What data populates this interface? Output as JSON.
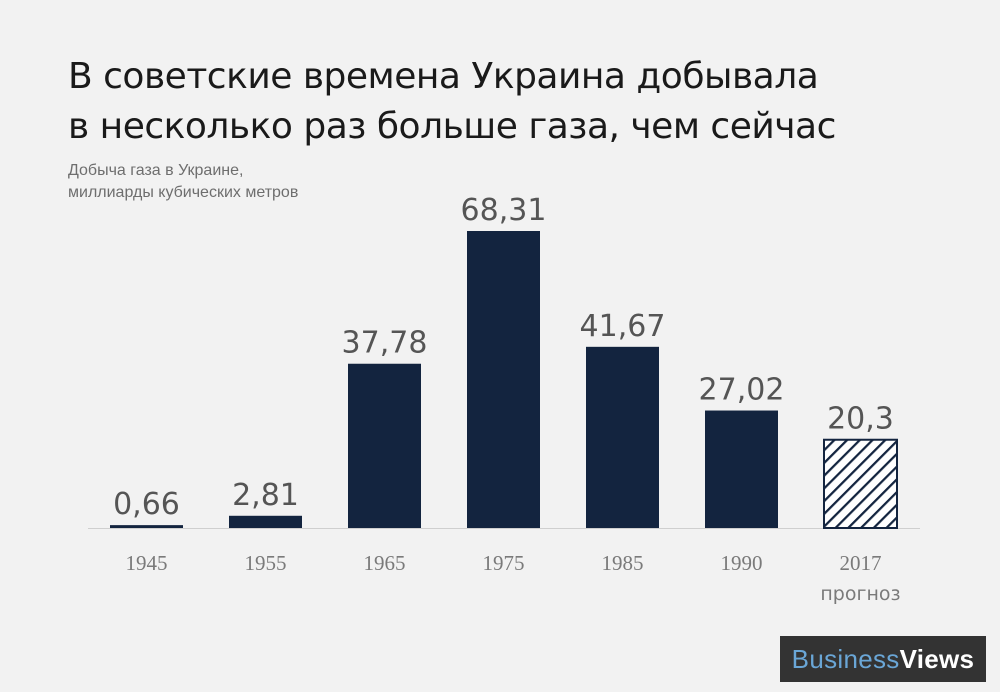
{
  "title_lines": [
    "В советские времена Украина добывала",
    "в несколько раз больше газа, чем сейчас"
  ],
  "subtitle_lines": [
    "Добыча газа в Украине,",
    "миллиарды кубических метров"
  ],
  "chart_data": {
    "type": "bar",
    "categories": [
      "1945",
      "1955",
      "1965",
      "1975",
      "1985",
      "1990",
      "2017"
    ],
    "category_notes": [
      "",
      "",
      "",
      "",
      "",
      "",
      "прогноз"
    ],
    "values": [
      0.66,
      2.81,
      37.78,
      68.31,
      41.67,
      27.02,
      20.3
    ],
    "value_labels": [
      "0,66",
      "2,81",
      "37,78",
      "68,31",
      "41,67",
      "27,02",
      "20,3"
    ],
    "forecast": [
      false,
      false,
      false,
      false,
      false,
      false,
      true
    ],
    "ylim": [
      0,
      68.31
    ],
    "grid": false,
    "bar_color": "#13243f",
    "forecast_style": "diagonal-hatch"
  },
  "logo": {
    "part1": "Business",
    "part2": "Views"
  },
  "colors": {
    "background": "#f2f2f2",
    "bar": "#13243f",
    "label": "#555555",
    "tick": "#7a7a7a",
    "baseline": "#cfcfcf",
    "logo_bg": "#333333",
    "logo_accent": "#6aa6d6"
  }
}
